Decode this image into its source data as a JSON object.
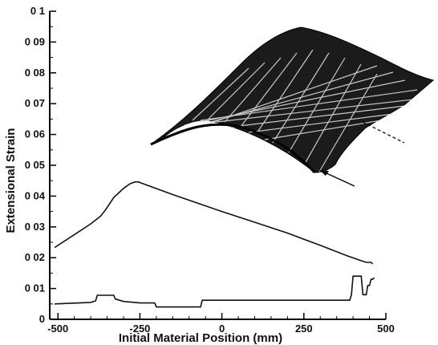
{
  "chart_data": {
    "type": "line",
    "title": "",
    "xlabel": "Initial Material Position (mm)",
    "ylabel": "Extensional Strain",
    "xlim": [
      -525,
      500
    ],
    "ylim": [
      0,
      0.1
    ],
    "xticks": [
      -500,
      -250,
      0,
      250,
      500
    ],
    "xtick_labels": [
      "-500",
      "-250",
      "0",
      "250",
      "500"
    ],
    "yticks": [
      0,
      0.01,
      0.02,
      0.03,
      0.04,
      0.05,
      0.06,
      0.07,
      0.08,
      0.09,
      0.1
    ],
    "ytick_labels": [
      "0",
      "0 01",
      "0 02",
      "0 03",
      "0 04",
      "0 05",
      "0 06",
      "0 07",
      "0 08",
      "0 09",
      "0 1"
    ],
    "grid": false,
    "legend": "none",
    "series": [
      {
        "color": "#111111",
        "x": [
          -510,
          -450,
          -400,
          -370,
          -355,
          -330,
          -300,
          -280,
          -265,
          -255,
          -240,
          -150,
          0,
          100,
          200,
          300,
          380,
          420,
          440,
          455,
          460
        ],
        "y": [
          0.0233,
          0.0275,
          0.031,
          0.0335,
          0.0355,
          0.0395,
          0.0425,
          0.044,
          0.0446,
          0.0446,
          0.044,
          0.0405,
          0.035,
          0.0315,
          0.028,
          0.024,
          0.0207,
          0.0192,
          0.0185,
          0.0185,
          0.018
        ]
      },
      {
        "color": "#111111",
        "x": [
          -510,
          -400,
          -385,
          -380,
          -330,
          -325,
          -300,
          -250,
          -205,
          -200,
          -65,
          -60,
          230,
          390,
          395,
          400,
          405,
          425,
          430,
          440,
          445,
          450,
          455,
          460,
          465
        ],
        "y": [
          0.005,
          0.0055,
          0.006,
          0.0078,
          0.0078,
          0.0066,
          0.0058,
          0.0053,
          0.0053,
          0.004,
          0.004,
          0.0062,
          0.0062,
          0.0062,
          0.008,
          0.014,
          0.014,
          0.014,
          0.008,
          0.008,
          0.011,
          0.011,
          0.013,
          0.013,
          0.0135
        ]
      }
    ],
    "annotations": [
      "3D mesh surface inset with arrow and dashed leader line"
    ]
  }
}
